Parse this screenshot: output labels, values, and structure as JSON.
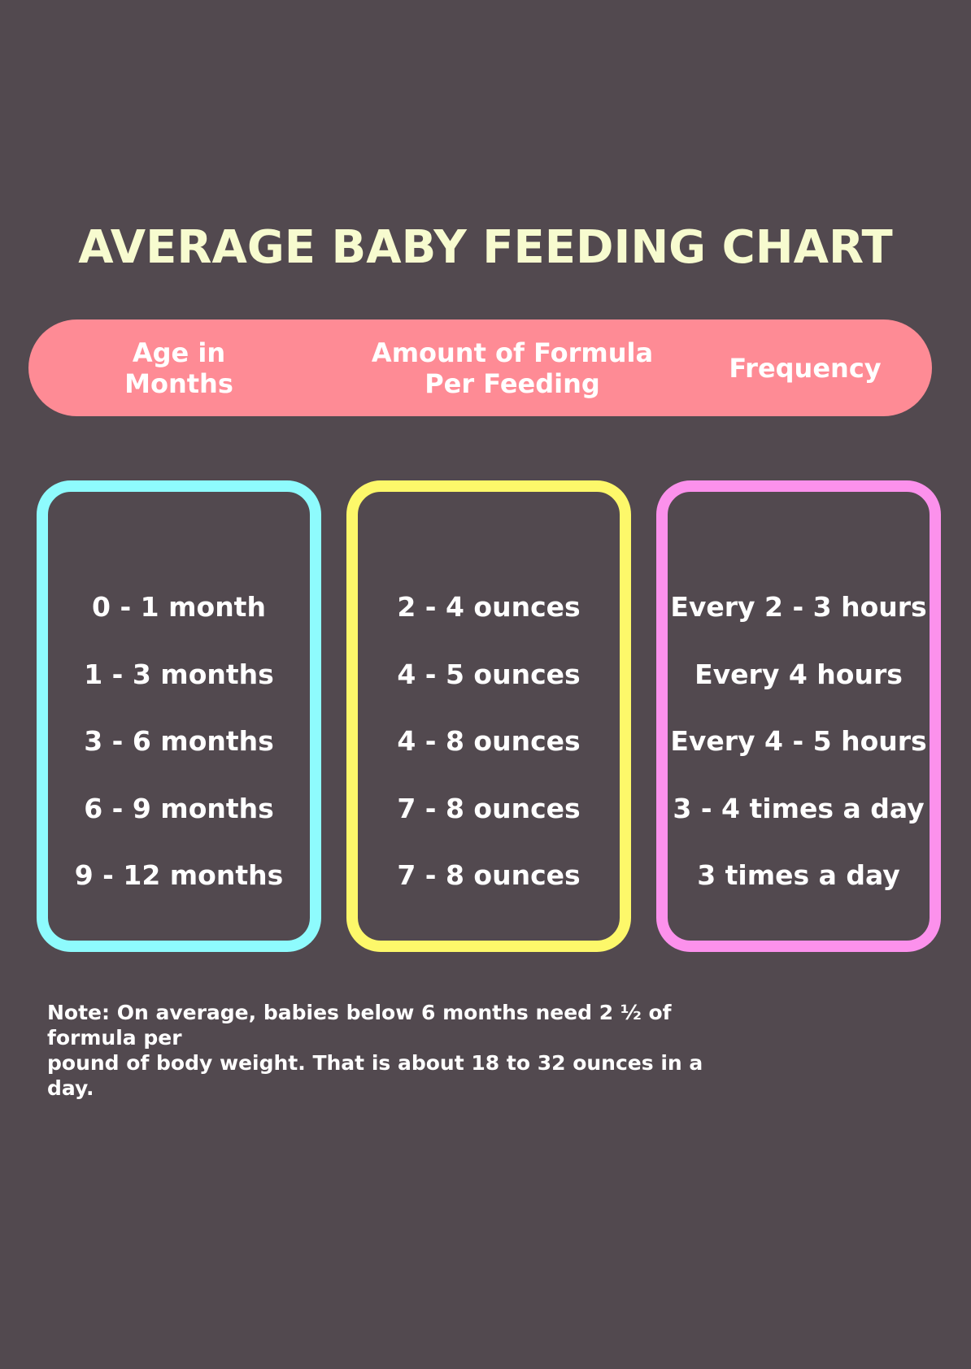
{
  "title": "AVERAGE BABY FEEDING CHART",
  "header": {
    "age": "Age in\nMonths",
    "amount": "Amount of Formula\nPer Feeding",
    "frequency": "Frequency"
  },
  "rows": {
    "age": [
      "0 - 1 month",
      "1 - 3 months",
      "3 - 6 months",
      "6 - 9 months",
      "9 - 12 months"
    ],
    "amount": [
      "2 - 4 ounces",
      "4 - 5 ounces",
      "4 - 8 ounces",
      "7 - 8 ounces",
      "7 - 8 ounces"
    ],
    "frequency": [
      "Every 2 - 3 hours",
      "Every 4 hours",
      "Every 4 - 5 hours",
      "3 - 4 times a day",
      "3 times a day"
    ]
  },
  "note": "Note: On average, babies below 6 months need 2 ½ of formula per\npound of body weight. That is about 18 to 32 ounces in a day.",
  "colors": {
    "background": "#52494f",
    "title": "#f7fbcf",
    "header_bar": "#fe8b95",
    "age_box": "#8efbfd",
    "amount_box": "#fdf86a",
    "frequency_box": "#fc91ec"
  }
}
